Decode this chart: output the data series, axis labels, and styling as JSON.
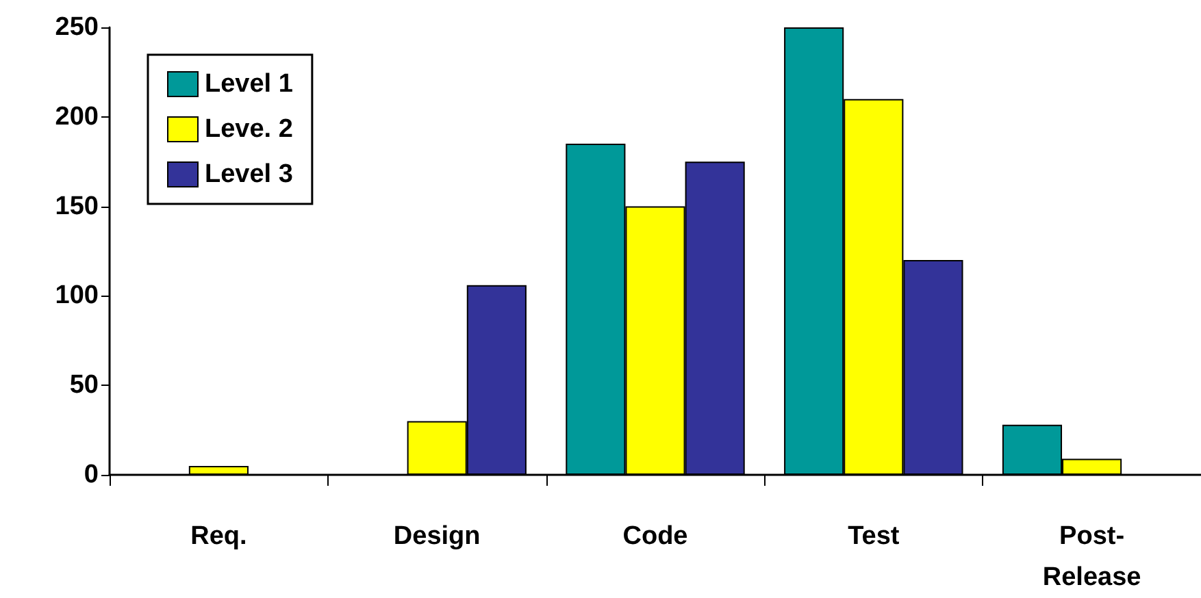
{
  "chart_data": {
    "type": "bar",
    "categories": [
      "Req.",
      "Design",
      "Code",
      "Test",
      "Post-\nRelease"
    ],
    "series": [
      {
        "name": "Level 1",
        "color": "#009999",
        "values": [
          0,
          0,
          185,
          250,
          28
        ]
      },
      {
        "name": "Leve. 2",
        "color": "#ffff00",
        "values": [
          5,
          30,
          150,
          210,
          9
        ]
      },
      {
        "name": "Level 3",
        "color": "#333399",
        "values": [
          0,
          106,
          175,
          120,
          0
        ]
      }
    ],
    "ylim": [
      0,
      250
    ],
    "yticks": [
      0,
      50,
      100,
      150,
      200,
      250
    ],
    "grid": false,
    "legend": "top left"
  }
}
